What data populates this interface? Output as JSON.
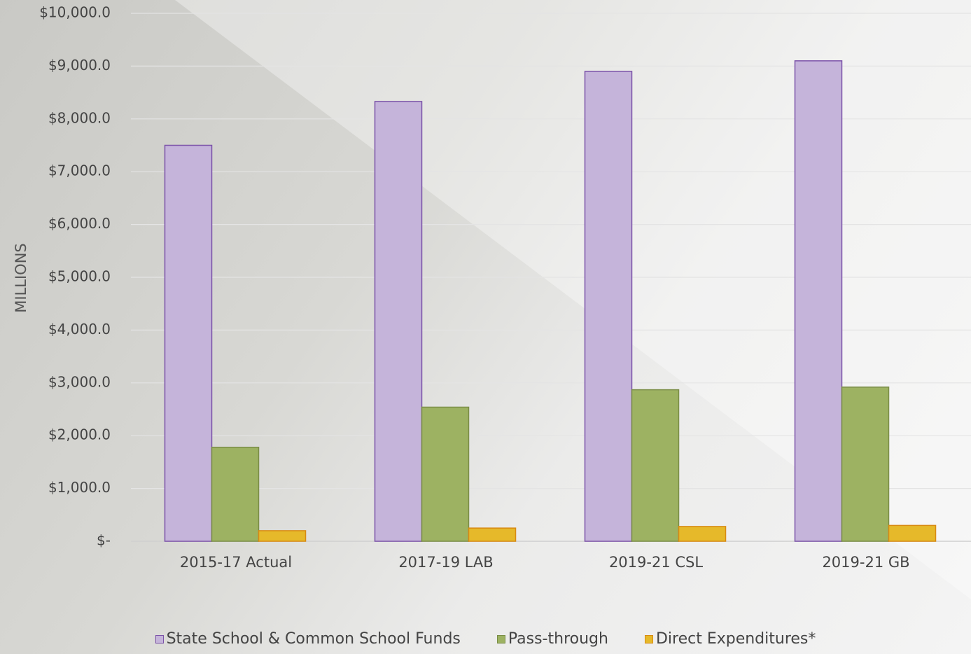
{
  "chart_data": {
    "type": "bar",
    "categories": [
      "2015-17 Actual",
      "2017-19 LAB",
      "2019-21 CSL",
      "2019-21 GB"
    ],
    "series": [
      {
        "name": "State School & Common School Funds",
        "values": [
          7500,
          8330,
          8900,
          9100
        ],
        "color": "#c5b4da",
        "stroke": "#7b52a8"
      },
      {
        "name": "Pass-through",
        "values": [
          1780,
          2540,
          2870,
          2920
        ],
        "color": "#9db262",
        "stroke": "#7a8d46"
      },
      {
        "name": "Direct Expenditures*",
        "values": [
          200,
          250,
          280,
          300
        ],
        "color": "#e6b92a",
        "stroke": "#d88a12"
      }
    ],
    "ylim": [
      0,
      10000
    ],
    "yticks": [
      "$-",
      "$1,000.0",
      "$2,000.0",
      "$3,000.0",
      "$4,000.0",
      "$5,000.0",
      "$6,000.0",
      "$7,000.0",
      "$8,000.0",
      "$9,000.0",
      "$10,000.0"
    ],
    "ylabel": "MILLIONS",
    "grid": true,
    "legend_position": "bottom"
  }
}
